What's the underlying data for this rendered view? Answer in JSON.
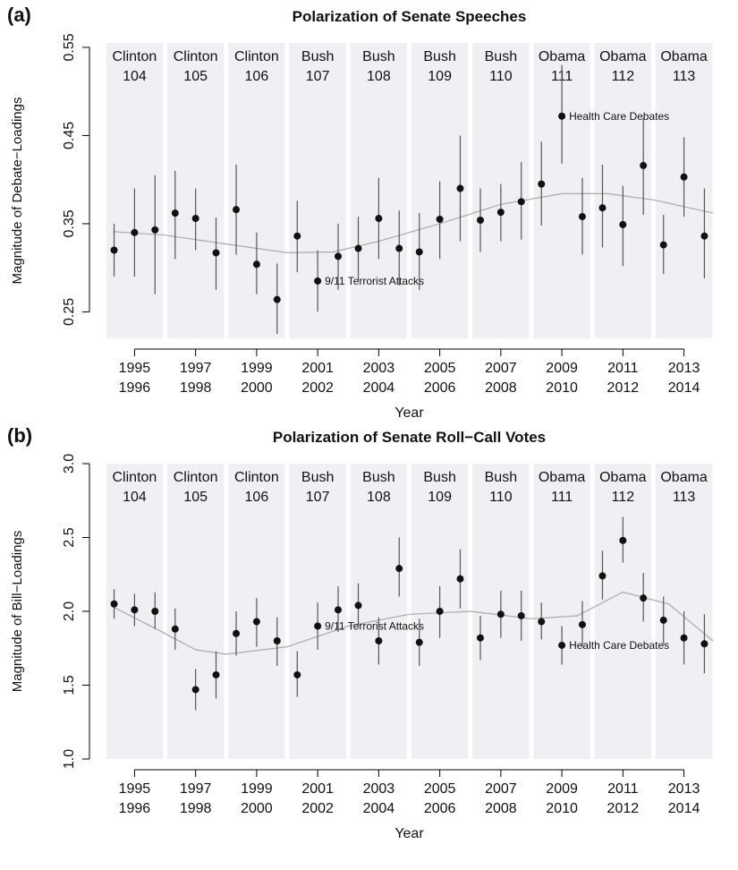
{
  "chart_data": [
    {
      "type": "scatter",
      "panel_label": "(a)",
      "title": "Polarization of Senate Speeches",
      "y_label": "Magnitude of Debate−Loadings",
      "x_label": "Year",
      "xlim": [
        1994.05,
        2013.95
      ],
      "ylim": [
        0.22,
        0.555
      ],
      "yticks": [
        0.25,
        0.35,
        0.45,
        0.55
      ],
      "xticks": [
        {
          "value": 1995,
          "label": [
            "1995",
            "1996"
          ]
        },
        {
          "value": 1997,
          "label": [
            "1997",
            "1998"
          ]
        },
        {
          "value": 1999,
          "label": [
            "1999",
            "2000"
          ]
        },
        {
          "value": 2001,
          "label": [
            "2001",
            "2002"
          ]
        },
        {
          "value": 2003,
          "label": [
            "2003",
            "2004"
          ]
        },
        {
          "value": 2005,
          "label": [
            "2005",
            "2006"
          ]
        },
        {
          "value": 2007,
          "label": [
            "2007",
            "2008"
          ]
        },
        {
          "value": 2009,
          "label": [
            "2009",
            "2010"
          ]
        },
        {
          "value": 2011,
          "label": [
            "2011",
            "2012"
          ]
        },
        {
          "value": 2013,
          "label": [
            "2013",
            "2014"
          ]
        }
      ],
      "congresses": [
        {
          "president": "Clinton",
          "number": "104"
        },
        {
          "president": "Clinton",
          "number": "105"
        },
        {
          "president": "Clinton",
          "number": "106"
        },
        {
          "president": "Bush",
          "number": "107"
        },
        {
          "president": "Bush",
          "number": "108"
        },
        {
          "president": "Bush",
          "number": "109"
        },
        {
          "president": "Bush",
          "number": "110"
        },
        {
          "president": "Obama",
          "number": "111"
        },
        {
          "president": "Obama",
          "number": "112"
        },
        {
          "president": "Obama",
          "number": "113"
        }
      ],
      "x": [
        1994.33,
        1995,
        1995.67,
        1996.33,
        1997,
        1997.67,
        1998.33,
        1999,
        1999.67,
        2000.33,
        2001,
        2001.67,
        2002.33,
        2003,
        2003.67,
        2004.33,
        2005,
        2005.67,
        2006.33,
        2007,
        2007.67,
        2008.33,
        2009,
        2009.67,
        2010.33,
        2011,
        2011.67,
        2012.33,
        2013,
        2013.67
      ],
      "values": [
        0.32,
        0.34,
        0.343,
        0.362,
        0.356,
        0.317,
        0.366,
        0.304,
        0.264,
        0.336,
        0.285,
        0.313,
        0.322,
        0.356,
        0.322,
        0.318,
        0.355,
        0.39,
        0.354,
        0.363,
        0.375,
        0.395,
        0.472,
        0.358,
        0.368,
        0.349,
        0.416,
        0.326,
        0.403,
        0.336
      ],
      "lower": [
        0.29,
        0.29,
        0.27,
        0.31,
        0.32,
        0.275,
        0.315,
        0.27,
        0.225,
        0.295,
        0.25,
        0.275,
        0.285,
        0.31,
        0.28,
        0.275,
        0.31,
        0.33,
        0.318,
        0.33,
        0.332,
        0.348,
        0.418,
        0.315,
        0.323,
        0.302,
        0.36,
        0.293,
        0.358,
        0.288
      ],
      "upper": [
        0.35,
        0.39,
        0.405,
        0.41,
        0.39,
        0.357,
        0.417,
        0.34,
        0.305,
        0.376,
        0.32,
        0.35,
        0.358,
        0.402,
        0.365,
        0.362,
        0.398,
        0.45,
        0.39,
        0.395,
        0.42,
        0.443,
        0.53,
        0.402,
        0.417,
        0.393,
        0.47,
        0.36,
        0.448,
        0.39
      ],
      "annotations": [
        null,
        null,
        null,
        null,
        null,
        null,
        null,
        null,
        null,
        null,
        "9/11 Terrorist Attacks",
        null,
        null,
        null,
        null,
        null,
        null,
        null,
        null,
        null,
        null,
        null,
        "Health Care Debates",
        null,
        null,
        null,
        null,
        null,
        null,
        null
      ],
      "trend": {
        "x": [
          1994.3,
          1996,
          1998,
          2000,
          2001.5,
          2003,
          2005,
          2007,
          2009,
          2010.5,
          2012,
          2013.95
        ],
        "values": [
          0.341,
          0.337,
          0.327,
          0.317,
          0.318,
          0.33,
          0.35,
          0.372,
          0.384,
          0.384,
          0.377,
          0.362
        ]
      }
    },
    {
      "type": "scatter",
      "panel_label": "(b)",
      "title": "Polarization of Senate Roll−Call Votes",
      "y_label": "Magnitude of Bill−Loadings",
      "x_label": "Year",
      "xlim": [
        1994.05,
        2013.95
      ],
      "ylim": [
        1.0,
        3.0
      ],
      "yticks": [
        {
          "value": 1,
          "label": "1.0"
        },
        1.5,
        {
          "value": 2,
          "label": "2.0"
        },
        2.5,
        {
          "value": 3,
          "label": "3.0"
        }
      ],
      "xticks": [
        {
          "value": 1995,
          "label": [
            "1995",
            "1996"
          ]
        },
        {
          "value": 1997,
          "label": [
            "1997",
            "1998"
          ]
        },
        {
          "value": 1999,
          "label": [
            "1999",
            "2000"
          ]
        },
        {
          "value": 2001,
          "label": [
            "2001",
            "2002"
          ]
        },
        {
          "value": 2003,
          "label": [
            "2003",
            "2004"
          ]
        },
        {
          "value": 2005,
          "label": [
            "2005",
            "2006"
          ]
        },
        {
          "value": 2007,
          "label": [
            "2007",
            "2008"
          ]
        },
        {
          "value": 2009,
          "label": [
            "2009",
            "2010"
          ]
        },
        {
          "value": 2011,
          "label": [
            "2011",
            "2012"
          ]
        },
        {
          "value": 2013,
          "label": [
            "2013",
            "2014"
          ]
        }
      ],
      "congresses": [
        {
          "president": "Clinton",
          "number": "104"
        },
        {
          "president": "Clinton",
          "number": "105"
        },
        {
          "president": "Clinton",
          "number": "106"
        },
        {
          "president": "Bush",
          "number": "107"
        },
        {
          "president": "Bush",
          "number": "108"
        },
        {
          "president": "Bush",
          "number": "109"
        },
        {
          "president": "Bush",
          "number": "110"
        },
        {
          "president": "Obama",
          "number": "111"
        },
        {
          "president": "Obama",
          "number": "112"
        },
        {
          "president": "Obama",
          "number": "113"
        }
      ],
      "x": [
        1994.33,
        1995,
        1995.67,
        1996.33,
        1997,
        1997.67,
        1998.33,
        1999,
        1999.67,
        2000.33,
        2001,
        2001.67,
        2002.33,
        2003,
        2003.67,
        2004.33,
        2005,
        2005.67,
        2006.33,
        2007,
        2007.67,
        2008.33,
        2009,
        2009.67,
        2010.33,
        2011,
        2011.67,
        2012.33,
        2013,
        2013.67
      ],
      "values": [
        2.05,
        2.01,
        2.0,
        1.88,
        1.47,
        1.57,
        1.85,
        1.93,
        1.8,
        1.57,
        1.9,
        2.01,
        2.04,
        1.8,
        2.29,
        1.79,
        2.0,
        2.22,
        1.82,
        1.98,
        1.97,
        1.93,
        1.77,
        1.91,
        2.24,
        2.48,
        2.09,
        1.94,
        1.82,
        1.78
      ],
      "lower": [
        1.95,
        1.9,
        1.88,
        1.74,
        1.33,
        1.41,
        1.7,
        1.76,
        1.63,
        1.42,
        1.74,
        1.86,
        1.89,
        1.64,
        2.1,
        1.63,
        1.82,
        2.02,
        1.67,
        1.82,
        1.8,
        1.81,
        1.64,
        1.76,
        2.08,
        2.33,
        1.93,
        1.78,
        1.64,
        1.58
      ],
      "upper": [
        2.15,
        2.12,
        2.13,
        2.02,
        1.61,
        1.73,
        2.0,
        2.09,
        1.96,
        1.73,
        2.06,
        2.17,
        2.19,
        1.96,
        2.5,
        1.95,
        2.17,
        2.42,
        1.97,
        2.14,
        2.14,
        2.06,
        1.9,
        2.07,
        2.41,
        2.64,
        2.26,
        2.1,
        2.0,
        1.98
      ],
      "annotations": [
        null,
        null,
        null,
        null,
        null,
        null,
        null,
        null,
        null,
        null,
        "9/11 Terrorist Attacks",
        null,
        null,
        null,
        null,
        null,
        null,
        null,
        null,
        null,
        null,
        null,
        "Health Care Debates",
        null,
        null,
        null,
        null,
        null,
        null,
        null
      ],
      "trend": {
        "x": [
          1994.3,
          1996,
          1997,
          1998,
          2000,
          2002,
          2004,
          2006,
          2008,
          2009.5,
          2011,
          2012.5,
          2013.95
        ],
        "values": [
          2.03,
          1.85,
          1.74,
          1.71,
          1.76,
          1.9,
          1.98,
          2.0,
          1.95,
          1.97,
          2.13,
          2.05,
          1.8
        ]
      }
    }
  ]
}
